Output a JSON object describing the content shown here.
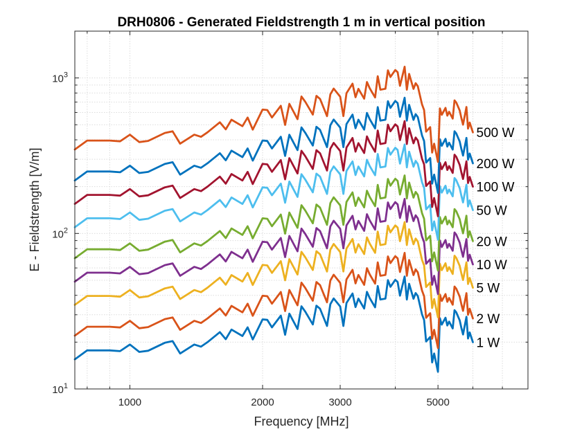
{
  "chart_data": {
    "type": "line",
    "title": "DRH0806 - Generated Fieldstrength 1 m in vertical position",
    "xlabel": "Frequency [MHz]",
    "ylabel": "E - Fieldstrength [V/m]",
    "xscale": "log",
    "yscale": "log",
    "xlim": [
      750,
      8000
    ],
    "ylim": [
      10,
      2000
    ],
    "grid": true,
    "legend": "none",
    "x_ticks": [
      {
        "value": 1000,
        "label": "1000"
      },
      {
        "value": 2000,
        "label": "2000"
      },
      {
        "value": 3000,
        "label": "3000"
      },
      {
        "value": 5000,
        "label": "5000"
      }
    ],
    "y_ticks": [
      {
        "value": 10,
        "base": "10",
        "exp": "1"
      },
      {
        "value": 100,
        "base": "10",
        "exp": "2"
      },
      {
        "value": 1000,
        "base": "10",
        "exp": "3"
      }
    ],
    "x": [
      750,
      800,
      900,
      950,
      1000,
      1050,
      1100,
      1200,
      1250,
      1300,
      1400,
      1450,
      1500,
      1600,
      1650,
      1700,
      1800,
      1850,
      1900,
      2000,
      2050,
      2100,
      2200,
      2250,
      2300,
      2400,
      2450,
      2500,
      2600,
      2650,
      2700,
      2800,
      2850,
      2900,
      3000,
      3050,
      3100,
      3200,
      3250,
      3300,
      3400,
      3450,
      3500,
      3600,
      3650,
      3700,
      3800,
      3850,
      3900,
      4000,
      4050,
      4100,
      4200,
      4250,
      4300,
      4400,
      4450,
      4500,
      4600,
      4650,
      4700,
      4800,
      4850,
      4900,
      5000,
      5050,
      5100,
      5200,
      5250,
      5300,
      5400,
      5450,
      5500,
      5600,
      5650,
      5700,
      5800,
      5850,
      5900,
      6000
    ],
    "shape_1W": [
      15.5,
      17.7,
      17.7,
      17.5,
      19.3,
      17.3,
      17.6,
      19.8,
      20.3,
      16.9,
      19.3,
      18.7,
      20.0,
      23.2,
      20.9,
      24.1,
      21.9,
      24.9,
      20.8,
      28.0,
      27.8,
      24.9,
      29.6,
      22.3,
      30.5,
      24.3,
      34.0,
      31.4,
      26.0,
      34.3,
      32.8,
      25.4,
      35.1,
      38.2,
      33.9,
      25.4,
      35.7,
      41.1,
      33.6,
      38.1,
      32.9,
      42.1,
      38.4,
      33.5,
      45.9,
      37.6,
      38.1,
      50.1,
      45.4,
      50.3,
      48.7,
      39.8,
      52.8,
      37.6,
      47.5,
      38.0,
      41.4,
      39.6,
      30.2,
      27.8,
      20.2,
      21.6,
      14.8,
      16.9,
      12.9,
      28.5,
      25.9,
      28.7,
      25.6,
      27.1,
      24.5,
      32.1,
      31.1,
      27.6,
      24.7,
      22.4,
      29.1,
      21.1,
      23.1,
      20.0
    ],
    "series": [
      {
        "name": "1 W",
        "label": "1 W",
        "color": "#0072BD",
        "factor": 1.0
      },
      {
        "name": "2 W",
        "label": "2 W",
        "color": "#D95319",
        "factor": 1.42
      },
      {
        "name": "5 W",
        "label": "5 W",
        "color": "#EDB120",
        "factor": 2.24
      },
      {
        "name": "10 W",
        "label": "10 W",
        "color": "#7E2F8E",
        "factor": 3.16
      },
      {
        "name": "20 W",
        "label": "20 W",
        "color": "#77AC30",
        "factor": 4.47
      },
      {
        "name": "50 W",
        "label": "50 W",
        "color": "#4DBEEE",
        "factor": 7.07
      },
      {
        "name": "100 W",
        "label": "100 W",
        "color": "#A2142F",
        "factor": 10.0
      },
      {
        "name": "200 W",
        "label": "200 W",
        "color": "#0072BD",
        "factor": 14.14
      },
      {
        "name": "500 W",
        "label": "500 W",
        "color": "#D95319",
        "factor": 22.36
      }
    ]
  }
}
